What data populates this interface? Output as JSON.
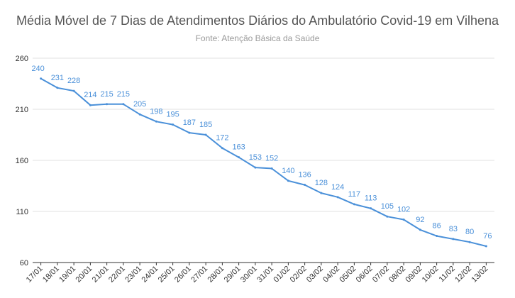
{
  "header": {
    "title": "Média Móvel de 7 Dias de Atendimentos Diários do Ambulatório Covid-19 em Vilhena",
    "subtitle": "Fonte: Atenção Básica da Saúde"
  },
  "chart_data": {
    "type": "line",
    "title": "Média Móvel de 7 Dias de Atendimentos Diários do Ambulatório Covid-19 em Vilhena",
    "subtitle": "Fonte: Atenção Básica da Saúde",
    "xlabel": "",
    "ylabel": "",
    "ylim": [
      60,
      260
    ],
    "yticks": [
      60,
      110,
      160,
      210,
      260
    ],
    "grid": true,
    "legend": "none",
    "line_color": "#4a90d9",
    "categories": [
      "17/01",
      "18/01",
      "19/01",
      "20/01",
      "21/01",
      "22/01",
      "23/01",
      "24/01",
      "25/01",
      "26/01",
      "27/01",
      "28/01",
      "29/01",
      "30/01",
      "31/01",
      "01/02",
      "02/02",
      "03/02",
      "04/02",
      "05/02",
      "06/02",
      "07/02",
      "08/02",
      "09/02",
      "10/02",
      "11/02",
      "12/02",
      "13/02"
    ],
    "series": [
      {
        "values": [
          240,
          231,
          228,
          214,
          215,
          215,
          205,
          198,
          195,
          187,
          185,
          172,
          163,
          153,
          152,
          140,
          136,
          128,
          124,
          117,
          113,
          105,
          102,
          92,
          86,
          83,
          80,
          76
        ]
      }
    ]
  }
}
